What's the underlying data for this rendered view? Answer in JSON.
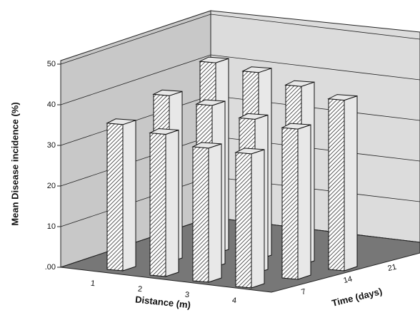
{
  "chart_data": {
    "type": "bar3d",
    "ylabel": "Mean Disease incidence (%)",
    "xlabel": "Distance (m)",
    "zlabel": "Time (days)",
    "categories": [
      "1",
      "2",
      "3",
      "4"
    ],
    "series": [
      {
        "name": "7",
        "values": [
          36,
          35,
          33,
          33
        ]
      },
      {
        "name": "14",
        "values": [
          41,
          40,
          38,
          37
        ]
      },
      {
        "name": "21",
        "values": [
          47,
          46,
          44,
          42
        ]
      }
    ],
    "color": "#e8e8e8",
    "ylim": [
      0,
      50
    ],
    "yticks": [
      {
        "value": 0,
        "label": ".00"
      },
      10,
      20,
      30,
      40,
      50
    ],
    "grid": true
  }
}
